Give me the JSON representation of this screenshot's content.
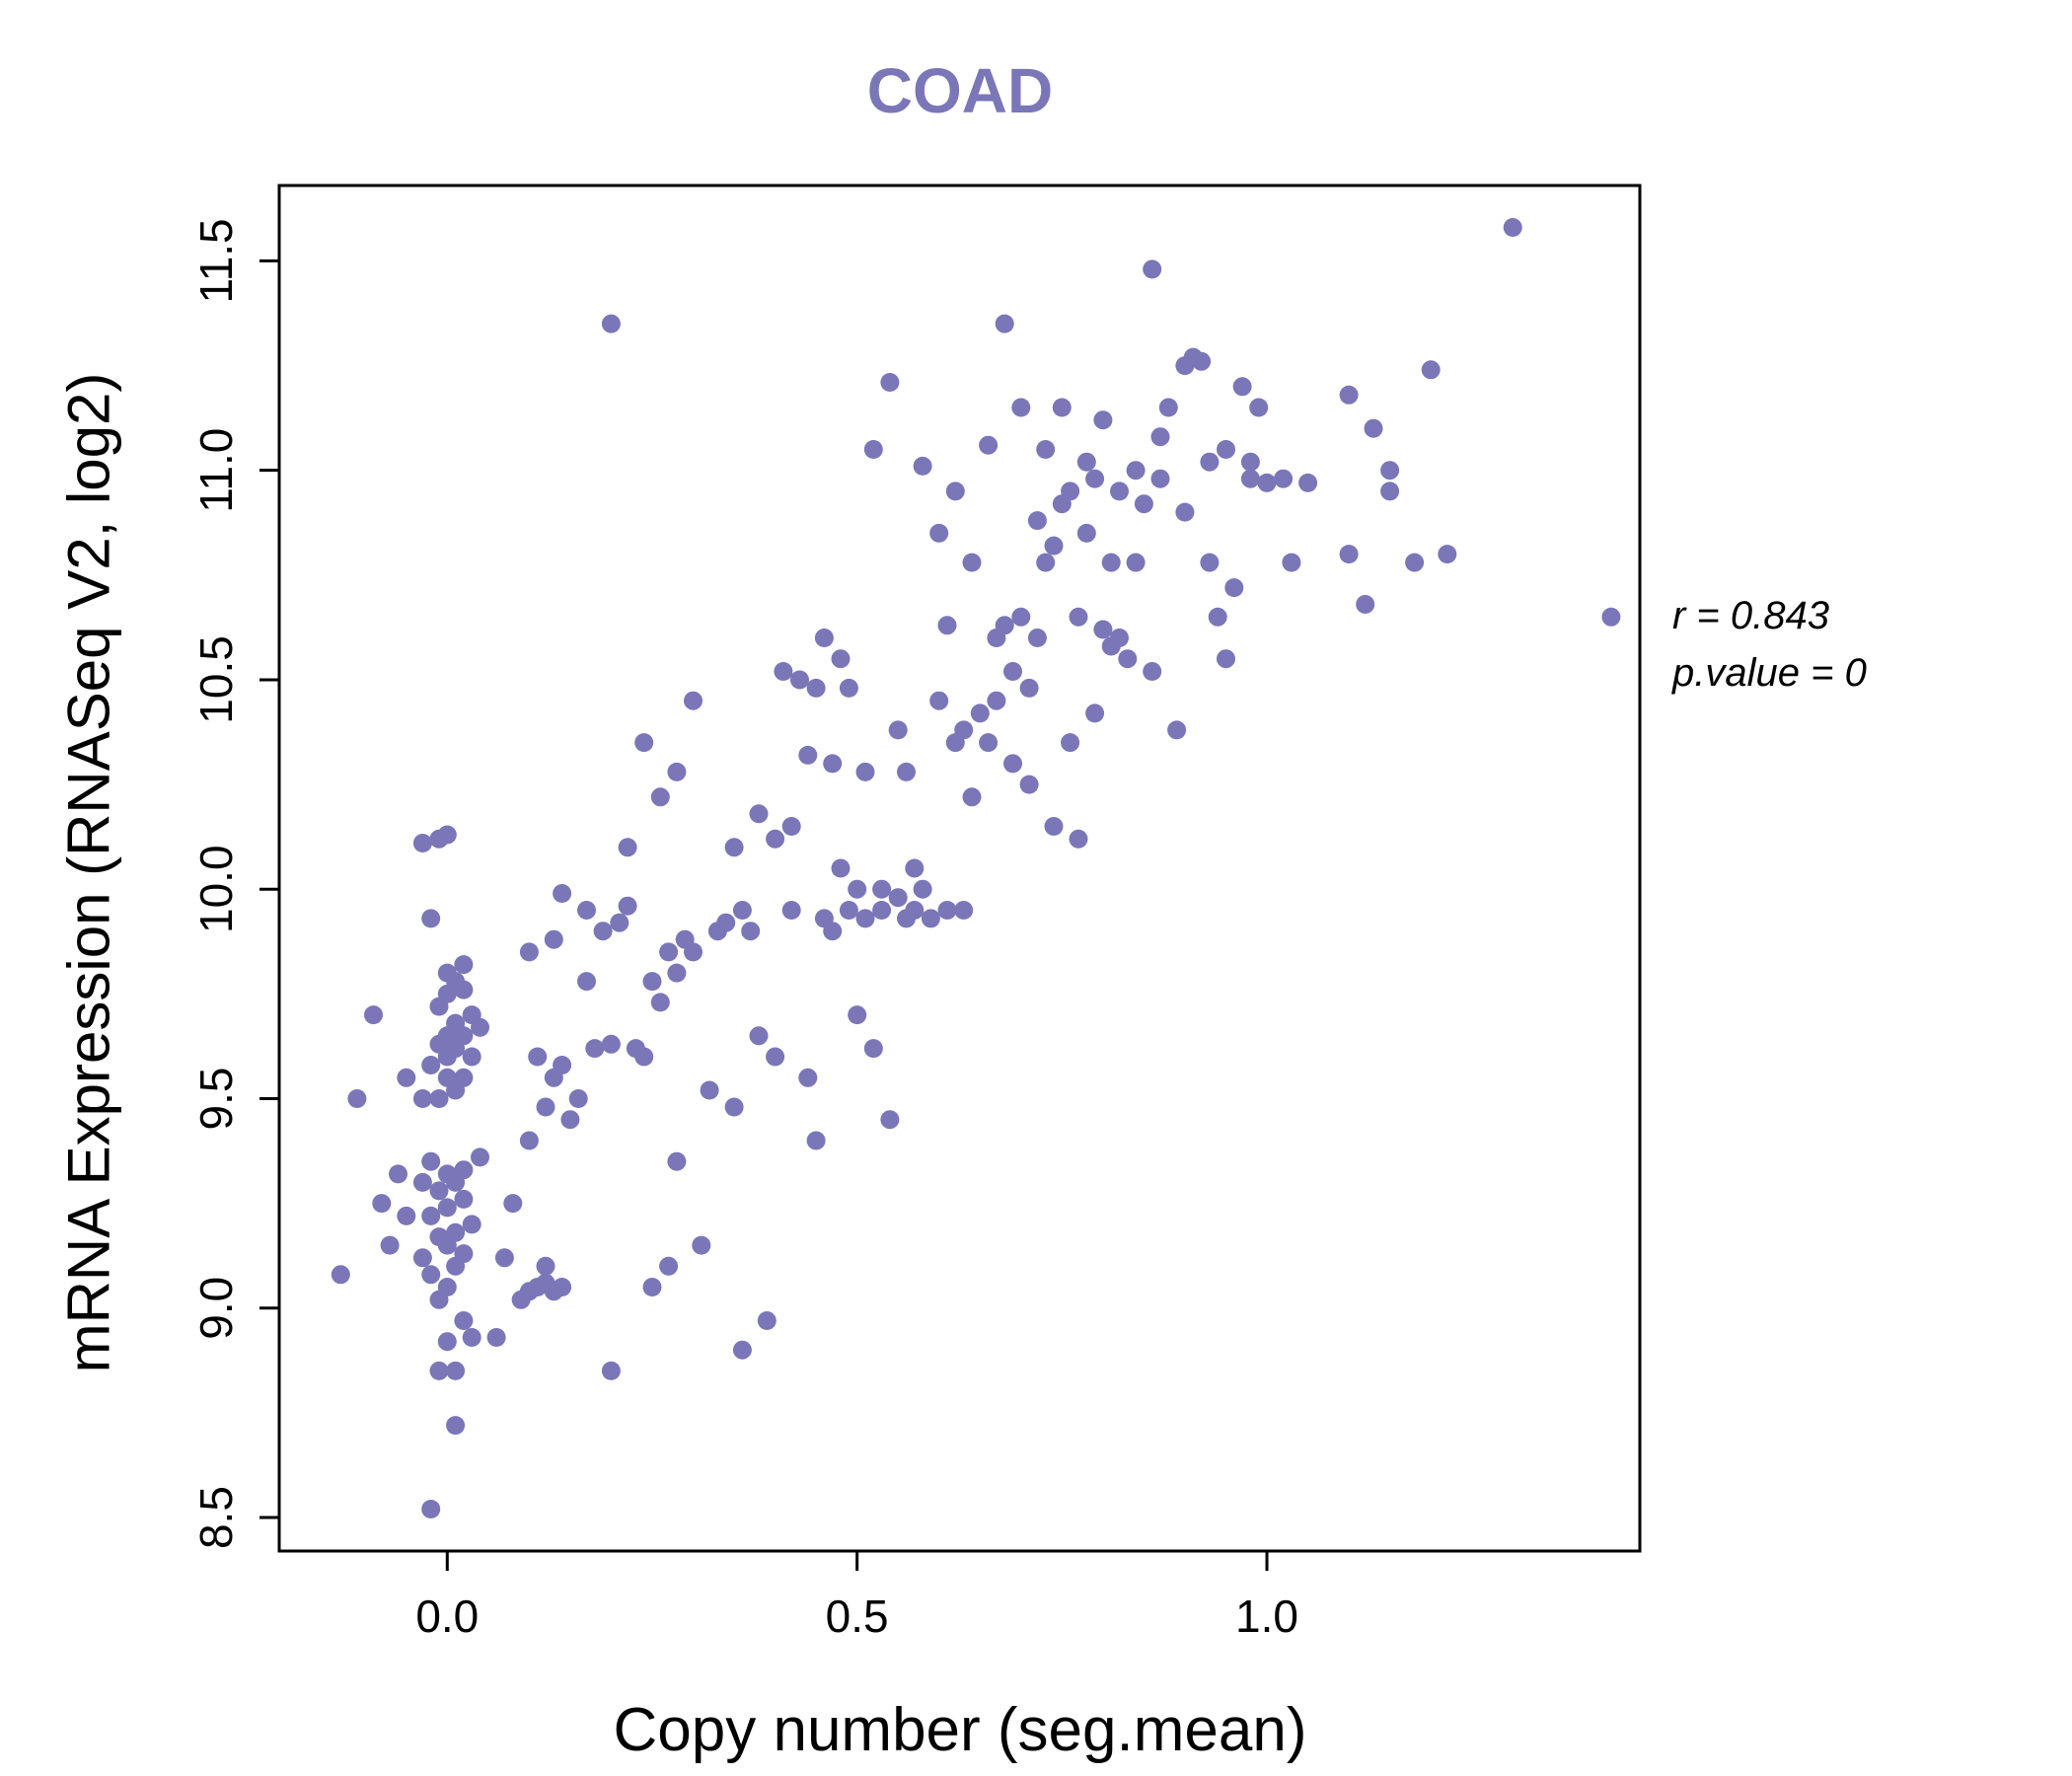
{
  "chart_data": {
    "type": "scatter",
    "title": "COAD",
    "xlabel": "Copy number (seg.mean)",
    "ylabel": "mRNA Expression (RNASeq V2, log2)",
    "xlim": [
      -0.205,
      1.455
    ],
    "ylim": [
      8.42,
      11.68
    ],
    "xticks": [
      0.0,
      0.5,
      1.0
    ],
    "xtick_labels": [
      "0.0",
      "0.5",
      "1.0"
    ],
    "yticks": [
      8.5,
      9.0,
      9.5,
      10.0,
      10.5,
      11.0,
      11.5
    ],
    "ytick_labels": [
      "8.5",
      "9.0",
      "9.5",
      "10.0",
      "10.5",
      "11.0",
      "11.5"
    ],
    "annotation": {
      "r_label": "r = 0.843",
      "p_label": "p.value = 0"
    },
    "colors": {
      "point": "#7a76b8",
      "title": "#7a76b8",
      "axis": "#000000"
    },
    "legend": "none",
    "grid": false,
    "points": [
      [
        -0.13,
        9.08
      ],
      [
        -0.11,
        9.5
      ],
      [
        -0.09,
        9.7
      ],
      [
        -0.08,
        9.25
      ],
      [
        -0.07,
        9.15
      ],
      [
        -0.06,
        9.32
      ],
      [
        -0.05,
        9.22
      ],
      [
        -0.02,
        8.52
      ],
      [
        0.01,
        8.72
      ],
      [
        -0.01,
        8.85
      ],
      [
        0.0,
        8.92
      ],
      [
        0.02,
        8.97
      ],
      [
        -0.01,
        9.02
      ],
      [
        0.0,
        9.05
      ],
      [
        -0.02,
        9.08
      ],
      [
        0.01,
        9.1
      ],
      [
        -0.03,
        9.12
      ],
      [
        0.02,
        9.13
      ],
      [
        0.0,
        9.15
      ],
      [
        -0.01,
        9.17
      ],
      [
        0.01,
        9.18
      ],
      [
        0.03,
        9.2
      ],
      [
        -0.02,
        9.22
      ],
      [
        0.0,
        9.24
      ],
      [
        0.02,
        9.26
      ],
      [
        -0.01,
        9.28
      ],
      [
        0.01,
        9.3
      ],
      [
        -0.03,
        9.3
      ],
      [
        0.0,
        9.32
      ],
      [
        0.02,
        9.33
      ],
      [
        -0.02,
        9.35
      ],
      [
        0.04,
        9.36
      ],
      [
        -0.05,
        9.55
      ],
      [
        -0.03,
        9.5
      ],
      [
        -0.01,
        9.5
      ],
      [
        0.01,
        9.52
      ],
      [
        0.0,
        9.55
      ],
      [
        0.02,
        9.55
      ],
      [
        -0.02,
        9.58
      ],
      [
        0.0,
        9.6
      ],
      [
        0.03,
        9.6
      ],
      [
        0.01,
        9.62
      ],
      [
        -0.01,
        9.63
      ],
      [
        0.02,
        9.65
      ],
      [
        0.0,
        9.65
      ],
      [
        0.04,
        9.67
      ],
      [
        0.01,
        9.68
      ],
      [
        0.03,
        9.7
      ],
      [
        -0.01,
        9.72
      ],
      [
        0.0,
        9.75
      ],
      [
        0.02,
        9.76
      ],
      [
        0.01,
        9.78
      ],
      [
        0.0,
        9.8
      ],
      [
        0.02,
        9.82
      ],
      [
        -0.02,
        9.93
      ],
      [
        -0.03,
        10.11
      ],
      [
        -0.01,
        10.12
      ],
      [
        0.0,
        10.13
      ],
      [
        0.01,
        8.85
      ],
      [
        0.03,
        8.93
      ],
      [
        0.07,
        9.12
      ],
      [
        0.06,
        8.93
      ],
      [
        0.08,
        9.25
      ],
      [
        0.1,
        9.4
      ],
      [
        0.12,
        9.48
      ],
      [
        0.13,
        9.55
      ],
      [
        0.11,
        9.6
      ],
      [
        0.09,
        9.02
      ],
      [
        0.1,
        9.04
      ],
      [
        0.11,
        9.05
      ],
      [
        0.12,
        9.06
      ],
      [
        0.13,
        9.04
      ],
      [
        0.14,
        9.05
      ],
      [
        0.12,
        9.1
      ],
      [
        0.15,
        9.45
      ],
      [
        0.16,
        9.5
      ],
      [
        0.14,
        9.58
      ],
      [
        0.13,
        9.88
      ],
      [
        0.1,
        9.85
      ],
      [
        0.14,
        9.99
      ],
      [
        0.17,
        9.78
      ],
      [
        0.18,
        9.62
      ],
      [
        0.2,
        9.63
      ],
      [
        0.17,
        9.95
      ],
      [
        0.19,
        9.9
      ],
      [
        0.2,
        11.35
      ],
      [
        0.22,
        9.96
      ],
      [
        0.21,
        9.92
      ],
      [
        0.2,
        8.85
      ],
      [
        0.25,
        9.05
      ],
      [
        0.23,
        9.62
      ],
      [
        0.24,
        9.6
      ],
      [
        0.25,
        9.78
      ],
      [
        0.22,
        10.1
      ],
      [
        0.24,
        10.35
      ],
      [
        0.26,
        10.22
      ],
      [
        0.27,
        9.85
      ],
      [
        0.28,
        9.8
      ],
      [
        0.28,
        9.35
      ],
      [
        0.27,
        9.1
      ],
      [
        0.26,
        9.73
      ],
      [
        0.29,
        9.88
      ],
      [
        0.3,
        9.85
      ],
      [
        0.3,
        10.45
      ],
      [
        0.28,
        10.28
      ],
      [
        0.31,
        9.15
      ],
      [
        0.32,
        9.52
      ],
      [
        0.33,
        9.9
      ],
      [
        0.34,
        9.92
      ],
      [
        0.35,
        9.48
      ],
      [
        0.35,
        10.1
      ],
      [
        0.36,
        8.9
      ],
      [
        0.36,
        9.95
      ],
      [
        0.37,
        9.9
      ],
      [
        0.38,
        10.18
      ],
      [
        0.38,
        9.65
      ],
      [
        0.39,
        8.97
      ],
      [
        0.4,
        9.6
      ],
      [
        0.4,
        10.12
      ],
      [
        0.41,
        10.52
      ],
      [
        0.42,
        9.95
      ],
      [
        0.42,
        10.15
      ],
      [
        0.43,
        10.5
      ],
      [
        0.44,
        9.55
      ],
      [
        0.44,
        10.32
      ],
      [
        0.45,
        9.4
      ],
      [
        0.45,
        10.48
      ],
      [
        0.46,
        10.6
      ],
      [
        0.46,
        9.93
      ],
      [
        0.47,
        10.3
      ],
      [
        0.47,
        9.9
      ],
      [
        0.48,
        10.05
      ],
      [
        0.48,
        10.55
      ],
      [
        0.49,
        9.95
      ],
      [
        0.49,
        10.48
      ],
      [
        0.5,
        9.7
      ],
      [
        0.5,
        10.0
      ],
      [
        0.51,
        9.93
      ],
      [
        0.51,
        10.28
      ],
      [
        0.52,
        11.05
      ],
      [
        0.52,
        9.62
      ],
      [
        0.53,
        9.95
      ],
      [
        0.53,
        10.0
      ],
      [
        0.54,
        11.21
      ],
      [
        0.54,
        9.45
      ],
      [
        0.55,
        9.98
      ],
      [
        0.55,
        10.38
      ],
      [
        0.56,
        10.28
      ],
      [
        0.56,
        9.93
      ],
      [
        0.57,
        10.05
      ],
      [
        0.57,
        9.95
      ],
      [
        0.58,
        10.0
      ],
      [
        0.58,
        11.01
      ],
      [
        0.59,
        9.93
      ],
      [
        0.6,
        10.45
      ],
      [
        0.6,
        10.85
      ],
      [
        0.61,
        10.63
      ],
      [
        0.61,
        9.95
      ],
      [
        0.62,
        10.35
      ],
      [
        0.62,
        10.95
      ],
      [
        0.63,
        10.38
      ],
      [
        0.63,
        9.95
      ],
      [
        0.64,
        10.22
      ],
      [
        0.64,
        10.78
      ],
      [
        0.65,
        10.42
      ],
      [
        0.66,
        10.35
      ],
      [
        0.66,
        11.06
      ],
      [
        0.67,
        10.6
      ],
      [
        0.67,
        10.45
      ],
      [
        0.68,
        10.63
      ],
      [
        0.68,
        11.35
      ],
      [
        0.69,
        10.52
      ],
      [
        0.69,
        10.3
      ],
      [
        0.7,
        10.65
      ],
      [
        0.7,
        11.15
      ],
      [
        0.71,
        10.48
      ],
      [
        0.71,
        10.25
      ],
      [
        0.72,
        10.6
      ],
      [
        0.72,
        10.88
      ],
      [
        0.73,
        10.78
      ],
      [
        0.73,
        11.05
      ],
      [
        0.74,
        10.82
      ],
      [
        0.74,
        10.15
      ],
      [
        0.75,
        10.92
      ],
      [
        0.75,
        11.15
      ],
      [
        0.76,
        10.35
      ],
      [
        0.76,
        10.95
      ],
      [
        0.77,
        10.65
      ],
      [
        0.77,
        10.12
      ],
      [
        0.78,
        10.85
      ],
      [
        0.78,
        11.02
      ],
      [
        0.79,
        10.42
      ],
      [
        0.79,
        10.98
      ],
      [
        0.8,
        10.62
      ],
      [
        0.8,
        11.12
      ],
      [
        0.81,
        10.58
      ],
      [
        0.81,
        10.78
      ],
      [
        0.82,
        10.6
      ],
      [
        0.82,
        10.95
      ],
      [
        0.83,
        10.55
      ],
      [
        0.84,
        10.78
      ],
      [
        0.84,
        11.0
      ],
      [
        0.85,
        10.92
      ],
      [
        0.86,
        11.48
      ],
      [
        0.86,
        10.52
      ],
      [
        0.87,
        11.08
      ],
      [
        0.87,
        10.98
      ],
      [
        0.88,
        11.15
      ],
      [
        0.89,
        10.38
      ],
      [
        0.9,
        11.25
      ],
      [
        0.9,
        10.9
      ],
      [
        0.91,
        11.27
      ],
      [
        0.92,
        11.26
      ],
      [
        0.93,
        10.78
      ],
      [
        0.93,
        11.02
      ],
      [
        0.94,
        10.65
      ],
      [
        0.95,
        11.05
      ],
      [
        0.95,
        10.55
      ],
      [
        0.96,
        10.72
      ],
      [
        0.97,
        11.2
      ],
      [
        0.98,
        11.02
      ],
      [
        0.98,
        10.98
      ],
      [
        0.99,
        11.15
      ],
      [
        1.0,
        10.97
      ],
      [
        1.02,
        10.98
      ],
      [
        1.03,
        10.78
      ],
      [
        1.05,
        10.97
      ],
      [
        1.1,
        10.8
      ],
      [
        1.1,
        11.18
      ],
      [
        1.12,
        10.68
      ],
      [
        1.13,
        11.1
      ],
      [
        1.15,
        10.95
      ],
      [
        1.15,
        11.0
      ],
      [
        1.18,
        10.78
      ],
      [
        1.2,
        11.24
      ],
      [
        1.22,
        10.8
      ],
      [
        1.3,
        11.58
      ],
      [
        1.42,
        10.65
      ]
    ]
  }
}
